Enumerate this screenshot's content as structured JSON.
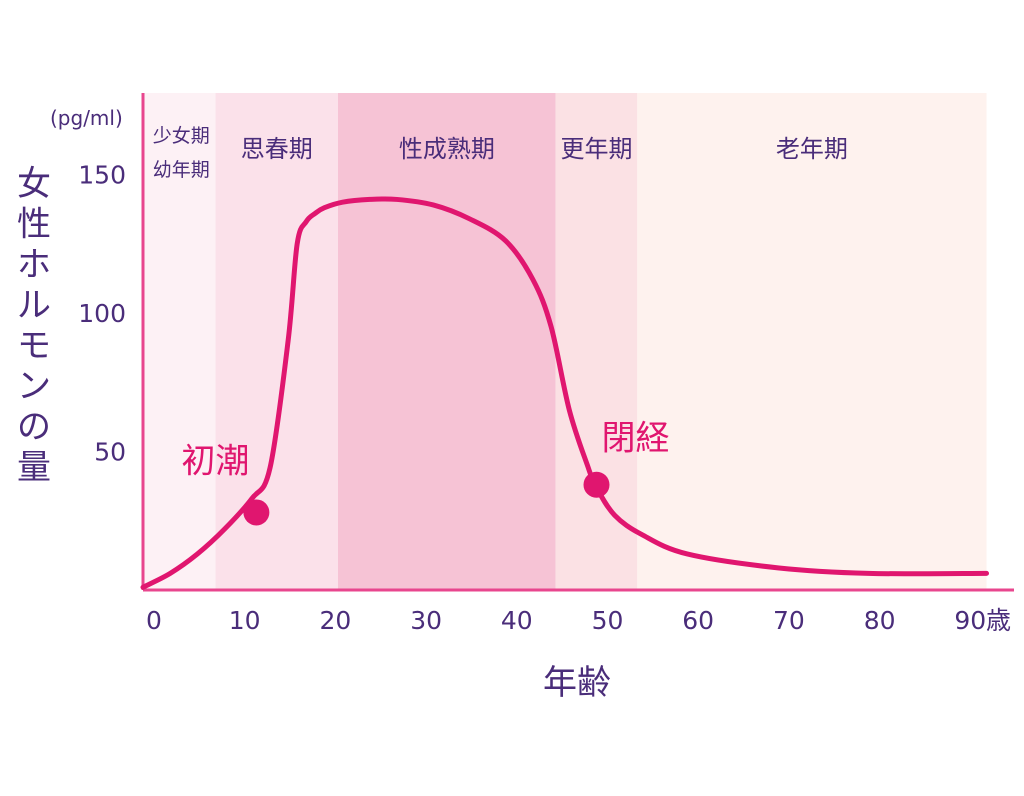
{
  "chart_data": {
    "type": "line",
    "title": "",
    "xlabel": "年齢",
    "ylabel": "女性ホルモンの量",
    "y_unit": "(pg/ml)",
    "x_unit": "歳",
    "xlim": [
      0,
      93
    ],
    "ylim": [
      0,
      160
    ],
    "x_ticks": [
      0,
      10,
      20,
      30,
      40,
      50,
      60,
      70,
      80,
      90
    ],
    "y_ticks": [
      50,
      100,
      150
    ],
    "grid": false,
    "colors": {
      "line": "#e0166f",
      "axis": "#e8468e",
      "text": "#4a2d7a",
      "annotation": "#e0166f"
    },
    "phases": [
      {
        "label_lines": [
          "少女期",
          "幼年期"
        ],
        "x_start": 0,
        "x_end": 8,
        "color": "#fdf1f5"
      },
      {
        "label_lines": [
          "思春期"
        ],
        "x_start": 8,
        "x_end": 21.5,
        "color": "#fbe1ea"
      },
      {
        "label_lines": [
          "性成熟期"
        ],
        "x_start": 21.5,
        "x_end": 45.5,
        "color": "#f6c3d5"
      },
      {
        "label_lines": [
          "更年期"
        ],
        "x_start": 45.5,
        "x_end": 54.5,
        "color": "#fbe1e4"
      },
      {
        "label_lines": [
          "老年期"
        ],
        "x_start": 54.5,
        "x_end": 93,
        "color": "#fef2ee"
      }
    ],
    "series": [
      {
        "x": [
          0,
          3,
          6,
          9,
          12,
          14,
          16,
          17,
          18,
          19,
          20,
          22,
          25,
          28,
          32,
          36,
          40,
          43,
          45,
          47,
          49,
          50,
          52,
          55,
          60,
          70,
          80,
          93
        ],
        "y": [
          1,
          6,
          13,
          22,
          33,
          44,
          90,
          125,
          133,
          136,
          138,
          140,
          141,
          141,
          139,
          134,
          126,
          112,
          95,
          65,
          45,
          37,
          27,
          20,
          13,
          8,
          6,
          6
        ]
      }
    ],
    "annotations": [
      {
        "label": "初潮",
        "x": 12.5,
        "y": 28
      },
      {
        "label": "閉経",
        "x": 50,
        "y": 38
      }
    ]
  }
}
